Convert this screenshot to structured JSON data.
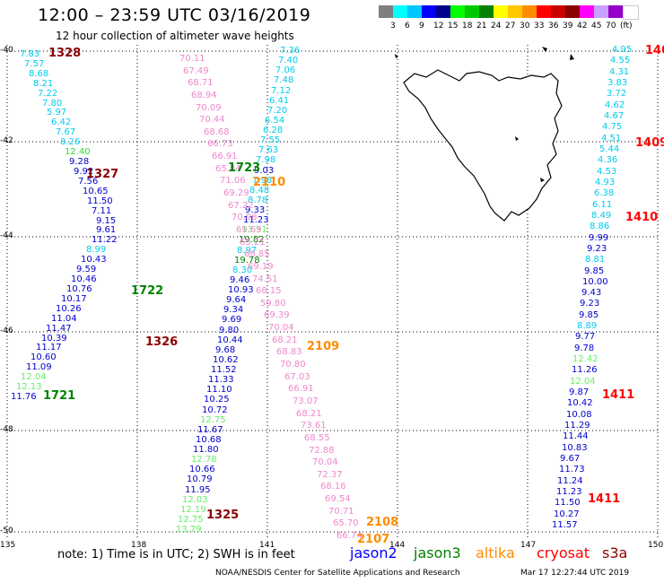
{
  "header": {
    "title": "12:00 – 23:59 UTC 03/16/2019",
    "subtitle": "12 hour collection of altimeter wave heights"
  },
  "color_scale": {
    "colors": [
      "#7f7f7f",
      "#00ffff",
      "#00c8ff",
      "#0000ff",
      "#00008c",
      "#00ff00",
      "#00c800",
      "#008200",
      "#ffff00",
      "#ffc800",
      "#ff8c00",
      "#ff0000",
      "#c80000",
      "#8c0000",
      "#ff00ff",
      "#c8a0ff",
      "#9600c8",
      "#ffffff"
    ],
    "labels": [
      "3",
      "6",
      "9",
      "12",
      "15",
      "18",
      "21",
      "24",
      "27",
      "30",
      "33",
      "36",
      "39",
      "42",
      "45",
      "70",
      "(ft)"
    ]
  },
  "axes": {
    "lat_labels": [
      "-40",
      "-42",
      "-44",
      "-46",
      "-48",
      "-50"
    ],
    "lon_labels": [
      "135",
      "138",
      "141",
      "144",
      "147",
      "150"
    ]
  },
  "note": "note: 1) Time is in UTC; 2) SWH is in feet",
  "satellites": [
    {
      "name": "jason2",
      "color": "#0000ff"
    },
    {
      "name": "jason3",
      "color": "#008200"
    },
    {
      "name": "altika",
      "color": "#ff8c00"
    },
    {
      "name": "cryosat",
      "color": "#ff0000"
    },
    {
      "name": "s3a",
      "color": "#8c0000"
    }
  ],
  "footer": "NOAA/NESDIS Center for Satellite Applications and Research",
  "footer_date": "Mar 17 12:27:44 UTC 2019",
  "tracks": [
    {
      "name": "s3a-track-1328",
      "values": [
        {
          "v": "7.83",
          "c": "#00ccee"
        },
        {
          "v": "7.57",
          "c": "#00ccee"
        },
        {
          "v": "8.68",
          "c": "#00ccee"
        },
        {
          "v": "8.21",
          "c": "#00ccee"
        },
        {
          "v": "7.22",
          "c": "#00ccee"
        },
        {
          "v": "7.80",
          "c": "#00ccee"
        },
        {
          "v": "5.97",
          "c": "#00ccee"
        },
        {
          "v": "6.42",
          "c": "#00ccee"
        },
        {
          "v": "7.67",
          "c": "#00ccee"
        },
        {
          "v": "8.26",
          "c": "#00ccee"
        },
        {
          "v": "12.40",
          "c": "#33dd33"
        },
        {
          "v": "9.28",
          "c": "#0000cc"
        },
        {
          "v": "9.92",
          "c": "#0000cc"
        },
        {
          "v": "7.56",
          "c": "#0000cc"
        },
        {
          "v": "10.65",
          "c": "#0000cc"
        },
        {
          "v": "11.50",
          "c": "#0000cc"
        },
        {
          "v": "7.11",
          "c": "#0000cc"
        },
        {
          "v": "9.15",
          "c": "#0000cc"
        },
        {
          "v": "9.61",
          "c": "#0000cc"
        },
        {
          "v": "11.22",
          "c": "#0000cc"
        },
        {
          "v": "8.99",
          "c": "#00ccee"
        },
        {
          "v": "10.43",
          "c": "#0000cc"
        },
        {
          "v": "9.59",
          "c": "#0000cc"
        },
        {
          "v": "10.46",
          "c": "#0000cc"
        },
        {
          "v": "10.76",
          "c": "#0000cc"
        },
        {
          "v": "10.17",
          "c": "#0000cc"
        },
        {
          "v": "10.26",
          "c": "#0000cc"
        },
        {
          "v": "11.04",
          "c": "#0000cc"
        },
        {
          "v": "11.47",
          "c": "#0000cc"
        },
        {
          "v": "10.39",
          "c": "#0000cc"
        },
        {
          "v": "11.17",
          "c": "#0000cc"
        },
        {
          "v": "10.60",
          "c": "#0000cc"
        },
        {
          "v": "11.09",
          "c": "#0000cc"
        },
        {
          "v": "12.04",
          "c": "#66ee66"
        },
        {
          "v": "12.13",
          "c": "#66ee66"
        },
        {
          "v": "11.76",
          "c": "#0000cc"
        }
      ]
    },
    {
      "name": "jason3-track-1722",
      "values": [
        {
          "v": "7.36",
          "c": "#00ccee"
        },
        {
          "v": "7.40",
          "c": "#00ccee"
        },
        {
          "v": "7.06",
          "c": "#00ccee"
        },
        {
          "v": "7.48",
          "c": "#00ccee"
        },
        {
          "v": "7.12",
          "c": "#00ccee"
        },
        {
          "v": "6.41",
          "c": "#00ccee"
        },
        {
          "v": "7.20",
          "c": "#00ccee"
        },
        {
          "v": "6.54",
          "c": "#00ccee"
        },
        {
          "v": "6.28",
          "c": "#00ccee"
        },
        {
          "v": "7.55",
          "c": "#00ccee"
        },
        {
          "v": "7.63",
          "c": "#00ccee"
        },
        {
          "v": "7.98",
          "c": "#00ccee"
        },
        {
          "v": "9.03",
          "c": "#0000cc"
        },
        {
          "v": "7.96",
          "c": "#00ccee"
        },
        {
          "v": "8.48",
          "c": "#00ccee"
        },
        {
          "v": "8.78",
          "c": "#00ccee"
        },
        {
          "v": "9.33",
          "c": "#0000cc"
        },
        {
          "v": "11.23",
          "c": "#0000cc"
        },
        {
          "v": "13.31",
          "c": "#66ee66"
        },
        {
          "v": "19.82",
          "c": "#008200"
        },
        {
          "v": "8.97",
          "c": "#00ccee"
        },
        {
          "v": "19.78",
          "c": "#008200"
        },
        {
          "v": "8.30",
          "c": "#00ccee"
        },
        {
          "v": "9.46",
          "c": "#0000cc"
        },
        {
          "v": "10.93",
          "c": "#0000cc"
        },
        {
          "v": "9.64",
          "c": "#0000cc"
        },
        {
          "v": "9.34",
          "c": "#0000cc"
        },
        {
          "v": "9.69",
          "c": "#0000cc"
        },
        {
          "v": "9.80",
          "c": "#0000cc"
        },
        {
          "v": "10.44",
          "c": "#0000cc"
        },
        {
          "v": "9.68",
          "c": "#0000cc"
        },
        {
          "v": "10.62",
          "c": "#0000cc"
        },
        {
          "v": "11.52",
          "c": "#0000cc"
        },
        {
          "v": "11.33",
          "c": "#0000cc"
        },
        {
          "v": "11.10",
          "c": "#0000cc"
        },
        {
          "v": "10.25",
          "c": "#0000cc"
        },
        {
          "v": "10.72",
          "c": "#0000cc"
        },
        {
          "v": "12.75",
          "c": "#66ee66"
        },
        {
          "v": "11.67",
          "c": "#0000cc"
        },
        {
          "v": "10.68",
          "c": "#0000cc"
        },
        {
          "v": "11.80",
          "c": "#0000cc"
        },
        {
          "v": "12.78",
          "c": "#66ee66"
        },
        {
          "v": "10.66",
          "c": "#0000cc"
        },
        {
          "v": "10.79",
          "c": "#0000cc"
        },
        {
          "v": "11.95",
          "c": "#0000cc"
        },
        {
          "v": "12.03",
          "c": "#66ee66"
        },
        {
          "v": "12.19",
          "c": "#66ee66"
        },
        {
          "v": "12.75",
          "c": "#66ee66"
        },
        {
          "v": "13.79",
          "c": "#66ee66"
        }
      ]
    },
    {
      "name": "altika-track-2110",
      "values": [
        {
          "v": "70.11",
          "c": "#ee88cc"
        },
        {
          "v": "67.49",
          "c": "#ee88cc"
        },
        {
          "v": "68.71",
          "c": "#ee88cc"
        },
        {
          "v": "68.94",
          "c": "#ee88cc"
        },
        {
          "v": "70.09",
          "c": "#ee88cc"
        },
        {
          "v": "70.44",
          "c": "#ee88cc"
        },
        {
          "v": "68.68",
          "c": "#ee88cc"
        },
        {
          "v": "66.73",
          "c": "#ee88cc"
        },
        {
          "v": "66.91",
          "c": "#ee88cc"
        },
        {
          "v": "65.84",
          "c": "#ee88cc"
        },
        {
          "v": "71.06",
          "c": "#ee88cc"
        },
        {
          "v": "69.29",
          "c": "#ee88cc"
        },
        {
          "v": "67.22",
          "c": "#ee88cc"
        },
        {
          "v": "70.98",
          "c": "#ee88cc"
        },
        {
          "v": "69.69",
          "c": "#ee88cc"
        },
        {
          "v": "65.21",
          "c": "#ee88cc"
        },
        {
          "v": "66.85",
          "c": "#ee88cc"
        },
        {
          "v": "69.19",
          "c": "#ee88cc"
        },
        {
          "v": "74.51",
          "c": "#ee88cc"
        },
        {
          "v": "68.15",
          "c": "#ee88cc"
        },
        {
          "v": "59.80",
          "c": "#ee88cc"
        },
        {
          "v": "69.39",
          "c": "#ee88cc"
        },
        {
          "v": "70.04",
          "c": "#ee88cc"
        },
        {
          "v": "68.21",
          "c": "#ee88cc"
        },
        {
          "v": "68.83",
          "c": "#ee88cc"
        },
        {
          "v": "70.80",
          "c": "#ee88cc"
        },
        {
          "v": "67.03",
          "c": "#ee88cc"
        },
        {
          "v": "66.91",
          "c": "#ee88cc"
        },
        {
          "v": "73.07",
          "c": "#ee88cc"
        },
        {
          "v": "68.21",
          "c": "#ee88cc"
        },
        {
          "v": "73.61",
          "c": "#ee88cc"
        },
        {
          "v": "68.55",
          "c": "#ee88cc"
        },
        {
          "v": "72.88",
          "c": "#ee88cc"
        },
        {
          "v": "70.04",
          "c": "#ee88cc"
        },
        {
          "v": "72.37",
          "c": "#ee88cc"
        },
        {
          "v": "68.16",
          "c": "#ee88cc"
        },
        {
          "v": "69.54",
          "c": "#ee88cc"
        },
        {
          "v": "70.71",
          "c": "#ee88cc"
        },
        {
          "v": "65.70",
          "c": "#ee88cc"
        },
        {
          "v": "66.74",
          "c": "#ee88cc"
        }
      ]
    },
    {
      "name": "cryosat-track-1409",
      "values": [
        {
          "v": "4.95",
          "c": "#00ccee"
        },
        {
          "v": "4.55",
          "c": "#00ccee"
        },
        {
          "v": "4.31",
          "c": "#00ccee"
        },
        {
          "v": "3.83",
          "c": "#00ccee"
        },
        {
          "v": "3.72",
          "c": "#00ccee"
        },
        {
          "v": "4.62",
          "c": "#00ccee"
        },
        {
          "v": "4.67",
          "c": "#00ccee"
        },
        {
          "v": "4.75",
          "c": "#00ccee"
        },
        {
          "v": "4.51",
          "c": "#00ccee"
        },
        {
          "v": "5.44",
          "c": "#00ccee"
        },
        {
          "v": "4.36",
          "c": "#00ccee"
        },
        {
          "v": "4.53",
          "c": "#00ccee"
        },
        {
          "v": "4.93",
          "c": "#00ccee"
        },
        {
          "v": "6.38",
          "c": "#00ccee"
        },
        {
          "v": "6.11",
          "c": "#00ccee"
        },
        {
          "v": "8.49",
          "c": "#00ccee"
        },
        {
          "v": "8.86",
          "c": "#00ccee"
        },
        {
          "v": "9.99",
          "c": "#0000cc"
        },
        {
          "v": "9.23",
          "c": "#0000cc"
        },
        {
          "v": "8.81",
          "c": "#00ccee"
        },
        {
          "v": "9.85",
          "c": "#0000cc"
        },
        {
          "v": "10.00",
          "c": "#0000cc"
        },
        {
          "v": "9.43",
          "c": "#0000cc"
        },
        {
          "v": "9.23",
          "c": "#0000cc"
        },
        {
          "v": "9.85",
          "c": "#0000cc"
        },
        {
          "v": "8.89",
          "c": "#00ccee"
        },
        {
          "v": "9.77",
          "c": "#0000cc"
        },
        {
          "v": "9.78",
          "c": "#0000cc"
        },
        {
          "v": "12.42",
          "c": "#66ee66"
        },
        {
          "v": "11.26",
          "c": "#0000cc"
        },
        {
          "v": "12.04",
          "c": "#66ee66"
        },
        {
          "v": "9.87",
          "c": "#0000cc"
        },
        {
          "v": "10.42",
          "c": "#0000cc"
        },
        {
          "v": "10.08",
          "c": "#0000cc"
        },
        {
          "v": "11.29",
          "c": "#0000cc"
        },
        {
          "v": "11.44",
          "c": "#0000cc"
        },
        {
          "v": "10.83",
          "c": "#0000cc"
        },
        {
          "v": "9.67",
          "c": "#0000cc"
        },
        {
          "v": "11.73",
          "c": "#0000cc"
        },
        {
          "v": "11.24",
          "c": "#0000cc"
        },
        {
          "v": "11.23",
          "c": "#0000cc"
        },
        {
          "v": "11.50",
          "c": "#0000cc"
        },
        {
          "v": "10.27",
          "c": "#0000cc"
        },
        {
          "v": "11.57",
          "c": "#0000cc"
        }
      ]
    }
  ],
  "time_labels": [
    {
      "t": "1328",
      "c": "#8c0000"
    },
    {
      "t": "1327",
      "c": "#8c0000"
    },
    {
      "t": "1326",
      "c": "#8c0000"
    },
    {
      "t": "1325",
      "c": "#8c0000"
    },
    {
      "t": "1723",
      "c": "#008200"
    },
    {
      "t": "1722",
      "c": "#008200"
    },
    {
      "t": "1721",
      "c": "#008200"
    },
    {
      "t": "2110",
      "c": "#ff8c00"
    },
    {
      "t": "2109",
      "c": "#ff8c00"
    },
    {
      "t": "2108",
      "c": "#ff8c00"
    },
    {
      "t": "2107",
      "c": "#ff8c00"
    },
    {
      "t": "140",
      "c": "#ff0000"
    },
    {
      "t": "1409",
      "c": "#ff0000"
    },
    {
      "t": "1410",
      "c": "#ff0000"
    },
    {
      "t": "1411",
      "c": "#ff0000"
    },
    {
      "t": "1411",
      "c": "#ff0000"
    }
  ]
}
